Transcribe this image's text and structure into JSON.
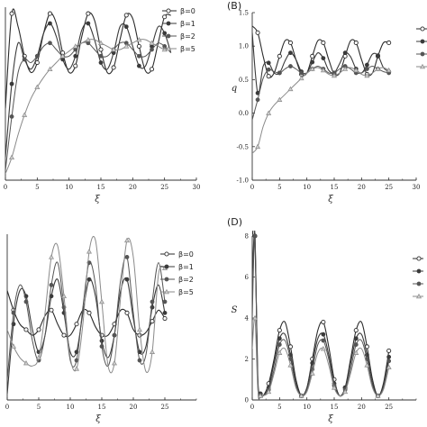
{
  "chart_data": [
    {
      "type": "line",
      "label": "",
      "xlabel": "ξ",
      "ylabel": "",
      "xlim": [
        0,
        30
      ],
      "xticks": [
        "0",
        "5",
        "10",
        "15",
        "20",
        "25",
        "30"
      ],
      "yticks": [],
      "legend": {
        "placement": "right",
        "entries": [
          "β=0",
          "β=1",
          "β=2",
          "β=5"
        ]
      },
      "series": [
        {
          "name": "β=0",
          "marker": "open-circle",
          "x": [
            0,
            1,
            2,
            3,
            4,
            5,
            6,
            7,
            8,
            9,
            10,
            11,
            12,
            13,
            14,
            15,
            16,
            17,
            18,
            19,
            20,
            21,
            22,
            23,
            24,
            25,
            26
          ],
          "y": [
            0.4,
            0.98,
            0.9,
            0.72,
            0.62,
            0.68,
            0.86,
            0.98,
            0.92,
            0.74,
            0.62,
            0.66,
            0.84,
            0.98,
            0.94,
            0.76,
            0.62,
            0.65,
            0.82,
            0.97,
            0.95,
            0.78,
            0.63,
            0.64,
            0.8,
            0.96,
            0.97
          ]
        },
        {
          "name": "β=1",
          "marker": "filled-circle",
          "x": [
            0,
            1,
            2,
            3,
            4,
            5,
            6,
            7,
            8,
            9,
            10,
            11,
            12,
            13,
            14,
            15,
            16,
            17,
            18,
            19,
            20,
            21,
            22,
            23,
            24,
            25,
            26
          ],
          "y": [
            0.1,
            0.55,
            0.8,
            0.7,
            0.64,
            0.72,
            0.86,
            0.92,
            0.84,
            0.7,
            0.64,
            0.72,
            0.88,
            0.92,
            0.82,
            0.68,
            0.64,
            0.74,
            0.9,
            0.9,
            0.78,
            0.66,
            0.66,
            0.78,
            0.9,
            0.86,
            0.74
          ]
        },
        {
          "name": "β=2",
          "marker": "filled-circle",
          "x": [
            0,
            1,
            2,
            3,
            4,
            5,
            6,
            7,
            8,
            9,
            10,
            11,
            12,
            13,
            14,
            15,
            16,
            17,
            18,
            19,
            20,
            21,
            22,
            23,
            24,
            25,
            26
          ],
          "y": [
            0.02,
            0.35,
            0.62,
            0.7,
            0.68,
            0.72,
            0.78,
            0.8,
            0.76,
            0.72,
            0.72,
            0.76,
            0.8,
            0.8,
            0.76,
            0.72,
            0.72,
            0.76,
            0.8,
            0.8,
            0.76,
            0.72,
            0.72,
            0.76,
            0.8,
            0.78,
            0.74
          ]
        },
        {
          "name": "β=5",
          "marker": "open-triangle",
          "x": [
            0,
            1,
            2,
            3,
            4,
            5,
            6,
            7,
            8,
            9,
            10,
            11,
            12,
            13,
            14,
            15,
            16,
            17,
            18,
            19,
            20,
            21,
            22,
            23,
            24,
            25,
            26
          ],
          "y": [
            0.0,
            0.1,
            0.24,
            0.36,
            0.46,
            0.53,
            0.59,
            0.64,
            0.68,
            0.72,
            0.75,
            0.78,
            0.8,
            0.82,
            0.82,
            0.8,
            0.78,
            0.76,
            0.76,
            0.78,
            0.8,
            0.82,
            0.82,
            0.8,
            0.78,
            0.76,
            0.76
          ]
        }
      ]
    },
    {
      "type": "line",
      "label": "(B)",
      "xlabel": "ξ",
      "ylabel": "q",
      "xlim": [
        0,
        30
      ],
      "ylim": [
        -1.0,
        1.5
      ],
      "xticks": [
        "0",
        "5",
        "10",
        "15",
        "20",
        "25",
        "30"
      ],
      "yticks": [
        "-1.0",
        "-0.5",
        "0.0",
        "0.5",
        "1.0",
        "1.5"
      ],
      "series": [
        {
          "name": "β=0",
          "marker": "open-circle",
          "x": [
            0,
            1,
            2,
            3,
            4,
            5,
            6,
            7,
            8,
            9,
            10,
            11,
            12,
            13,
            14,
            15,
            16,
            17,
            18,
            19,
            20,
            21,
            22,
            23,
            24,
            25
          ],
          "y": [
            1.3,
            1.2,
            0.85,
            0.55,
            0.6,
            0.85,
            1.08,
            1.05,
            0.8,
            0.58,
            0.6,
            0.85,
            1.08,
            1.05,
            0.8,
            0.58,
            0.6,
            0.85,
            1.08,
            1.05,
            0.8,
            0.58,
            0.6,
            0.85,
            1.05,
            1.05
          ]
        },
        {
          "name": "β=1",
          "marker": "filled-circle",
          "x": [
            0,
            1,
            2,
            3,
            4,
            5,
            6,
            7,
            8,
            9,
            10,
            11,
            12,
            13,
            14,
            15,
            16,
            17,
            18,
            19,
            20,
            21,
            22,
            23,
            24,
            25
          ],
          "y": [
            1.2,
            0.3,
            0.7,
            0.75,
            0.6,
            0.6,
            0.78,
            0.9,
            0.8,
            0.62,
            0.6,
            0.76,
            0.9,
            0.82,
            0.64,
            0.6,
            0.74,
            0.9,
            0.84,
            0.66,
            0.6,
            0.72,
            0.88,
            0.86,
            0.68,
            0.62
          ]
        },
        {
          "name": "β=2",
          "marker": "filled-circle",
          "x": [
            0,
            1,
            2,
            3,
            4,
            5,
            6,
            7,
            8,
            9,
            10,
            11,
            12,
            13,
            14,
            15,
            16,
            17,
            18,
            19,
            20,
            21,
            22,
            23,
            24,
            25
          ],
          "y": [
            -0.1,
            0.2,
            0.52,
            0.65,
            0.62,
            0.6,
            0.66,
            0.7,
            0.66,
            0.6,
            0.6,
            0.66,
            0.7,
            0.66,
            0.6,
            0.6,
            0.66,
            0.7,
            0.66,
            0.6,
            0.6,
            0.66,
            0.7,
            0.66,
            0.62,
            0.6
          ]
        },
        {
          "name": "β=5",
          "marker": "open-triangle",
          "x": [
            0,
            1,
            2,
            3,
            4,
            5,
            6,
            7,
            8,
            9,
            10,
            11,
            12,
            13,
            14,
            15,
            16,
            17,
            18,
            19,
            20,
            21,
            22,
            23,
            24,
            25
          ],
          "y": [
            -0.6,
            -0.5,
            -0.2,
            0.0,
            0.12,
            0.2,
            0.28,
            0.36,
            0.44,
            0.52,
            0.6,
            0.66,
            0.68,
            0.64,
            0.58,
            0.56,
            0.6,
            0.66,
            0.68,
            0.64,
            0.58,
            0.56,
            0.6,
            0.66,
            0.68,
            0.64
          ]
        }
      ]
    },
    {
      "type": "line",
      "label": "",
      "xlabel": "ξ",
      "ylabel": "",
      "xlim": [
        0,
        30
      ],
      "xticks": [
        "0",
        "5",
        "10",
        "15",
        "20",
        "25"
      ],
      "yticks": [],
      "legend": {
        "placement": "right",
        "entries": [
          "β=0",
          "β=1",
          "β=2",
          "β=5"
        ]
      },
      "series": [
        {
          "name": "β=0",
          "marker": "open-circle",
          "x": [
            0,
            1,
            2,
            3,
            4,
            5,
            6,
            7,
            8,
            9,
            10,
            11,
            12,
            13,
            14,
            15,
            16,
            17,
            18,
            19,
            20,
            21,
            22,
            23,
            24,
            25
          ],
          "y": [
            0.42,
            0.35,
            0.3,
            0.28,
            0.26,
            0.28,
            0.33,
            0.35,
            0.3,
            0.26,
            0.26,
            0.3,
            0.35,
            0.34,
            0.29,
            0.26,
            0.26,
            0.3,
            0.35,
            0.34,
            0.28,
            0.26,
            0.27,
            0.31,
            0.35,
            0.32
          ]
        },
        {
          "name": "β=1",
          "marker": "filled-circle",
          "x": [
            0,
            1,
            2,
            3,
            4,
            5,
            6,
            7,
            8,
            9,
            10,
            11,
            12,
            13,
            14,
            15,
            16,
            17,
            18,
            19,
            20,
            21,
            22,
            23,
            24,
            25
          ],
          "y": [
            0.05,
            0.3,
            0.42,
            0.4,
            0.28,
            0.2,
            0.26,
            0.4,
            0.46,
            0.34,
            0.2,
            0.2,
            0.34,
            0.46,
            0.4,
            0.24,
            0.18,
            0.26,
            0.42,
            0.46,
            0.32,
            0.2,
            0.22,
            0.36,
            0.44,
            0.34
          ]
        },
        {
          "name": "β=2",
          "marker": "filled-circle",
          "x": [
            0,
            1,
            2,
            3,
            4,
            5,
            6,
            7,
            8,
            9,
            10,
            11,
            12,
            13,
            14,
            15,
            16,
            17,
            18,
            19,
            20,
            21,
            22,
            23,
            24,
            25
          ],
          "y": [
            0.1,
            0.34,
            0.44,
            0.38,
            0.24,
            0.17,
            0.26,
            0.44,
            0.52,
            0.36,
            0.17,
            0.17,
            0.36,
            0.52,
            0.44,
            0.22,
            0.15,
            0.26,
            0.46,
            0.54,
            0.34,
            0.17,
            0.19,
            0.38,
            0.52,
            0.38
          ]
        },
        {
          "name": "β=5",
          "marker": "open-triangle",
          "x": [
            0,
            1,
            2,
            3,
            4,
            5,
            6,
            7,
            8,
            9,
            10,
            11,
            12,
            13,
            14,
            15,
            16,
            17,
            18,
            19,
            20,
            21,
            22,
            23,
            24,
            25
          ],
          "y": [
            0.28,
            0.22,
            0.18,
            0.16,
            0.15,
            0.18,
            0.34,
            0.54,
            0.58,
            0.4,
            0.18,
            0.14,
            0.3,
            0.56,
            0.6,
            0.38,
            0.15,
            0.16,
            0.4,
            0.6,
            0.54,
            0.28,
            0.13,
            0.2,
            0.48,
            0.5
          ]
        }
      ]
    },
    {
      "type": "line",
      "label": "(D)",
      "xlabel": "ξ",
      "ylabel": "S",
      "xlim": [
        0,
        30
      ],
      "ylim": [
        0,
        8
      ],
      "xticks": [
        "0",
        "5",
        "10",
        "15",
        "20",
        "25"
      ],
      "yticks": [
        "0",
        "2",
        "4",
        "6",
        "8"
      ],
      "series": [
        {
          "name": "β=0",
          "marker": "open-circle",
          "x": [
            0,
            0.5,
            1,
            1.5,
            2,
            3,
            4,
            5,
            6,
            7,
            8,
            9,
            10,
            11,
            12,
            13,
            14,
            15,
            16,
            17,
            18,
            19,
            20,
            21,
            22,
            23,
            24,
            25
          ],
          "y": [
            8.0,
            8.0,
            1.2,
            0.3,
            0.2,
            0.8,
            2.0,
            3.4,
            3.8,
            2.6,
            1.0,
            0.2,
            0.6,
            2.0,
            3.4,
            3.8,
            2.6,
            1.0,
            0.2,
            0.6,
            2.0,
            3.4,
            3.8,
            2.6,
            1.0,
            0.2,
            0.8,
            2.4
          ]
        },
        {
          "name": "β=1",
          "marker": "filled-circle",
          "x": [
            0,
            0.5,
            1,
            1.5,
            2,
            3,
            4,
            5,
            6,
            7,
            8,
            9,
            10,
            11,
            12,
            13,
            14,
            15,
            16,
            17,
            18,
            19,
            20,
            21,
            22,
            23,
            24,
            25
          ],
          "y": [
            6.0,
            8.0,
            1.0,
            0.3,
            0.2,
            0.6,
            1.8,
            3.0,
            3.2,
            2.2,
            0.8,
            0.2,
            0.6,
            1.8,
            3.0,
            3.2,
            2.2,
            0.8,
            0.2,
            0.6,
            1.8,
            3.0,
            3.2,
            2.2,
            0.8,
            0.2,
            0.7,
            2.1
          ]
        },
        {
          "name": "β=2",
          "marker": "filled-circle",
          "x": [
            0,
            0.5,
            1,
            1.5,
            2,
            3,
            4,
            5,
            6,
            7,
            8,
            9,
            10,
            11,
            12,
            13,
            14,
            15,
            16,
            17,
            18,
            19,
            20,
            21,
            22,
            23,
            24,
            25
          ],
          "y": [
            4.0,
            8.0,
            0.8,
            0.2,
            0.2,
            0.5,
            1.5,
            2.7,
            2.9,
            2.0,
            0.7,
            0.2,
            0.5,
            1.5,
            2.7,
            2.9,
            2.0,
            0.7,
            0.2,
            0.5,
            1.5,
            2.7,
            2.9,
            2.0,
            0.7,
            0.2,
            0.6,
            1.9
          ]
        },
        {
          "name": "β=5",
          "marker": "open-triangle",
          "x": [
            0,
            0.5,
            1,
            1.5,
            2,
            3,
            4,
            5,
            6,
            7,
            8,
            9,
            10,
            11,
            12,
            13,
            14,
            15,
            16,
            17,
            18,
            19,
            20,
            21,
            22,
            23,
            24,
            25
          ],
          "y": [
            2.5,
            4.0,
            0.6,
            0.2,
            0.2,
            0.4,
            1.3,
            2.3,
            2.5,
            1.7,
            0.6,
            0.2,
            0.4,
            1.3,
            2.3,
            2.5,
            1.7,
            0.6,
            0.2,
            0.4,
            1.3,
            2.3,
            2.5,
            1.7,
            0.6,
            0.2,
            0.5,
            1.6
          ]
        }
      ]
    }
  ]
}
